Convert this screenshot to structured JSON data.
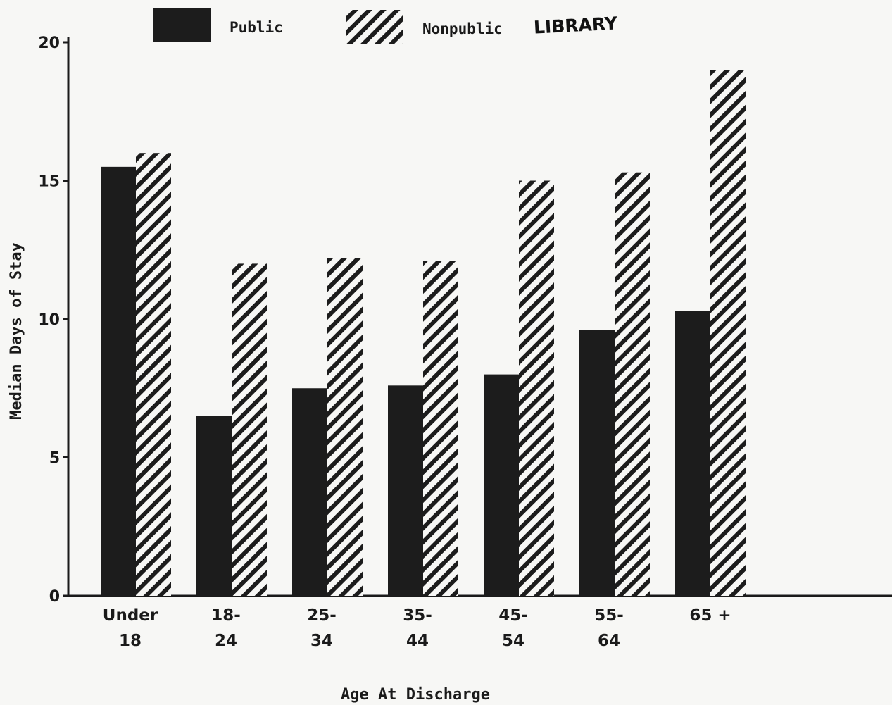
{
  "chart_data": {
    "type": "bar",
    "title": "",
    "xlabel": "Age At Discharge",
    "ylabel": "Median Days of Stay",
    "stamp": "LIBRARY",
    "categories": [
      [
        "Under",
        "18"
      ],
      [
        "18-",
        "24"
      ],
      [
        "25-",
        "34"
      ],
      [
        "35-",
        "44"
      ],
      [
        "45-",
        "54"
      ],
      [
        "55-",
        "64"
      ],
      [
        "65 +"
      ]
    ],
    "series": [
      {
        "name": "Public",
        "pattern": "solid",
        "color": "#1c1c1c",
        "values": [
          15.5,
          6.5,
          7.5,
          7.6,
          8.0,
          9.6,
          10.3
        ]
      },
      {
        "name": "Nonpublic",
        "pattern": "hatched",
        "color": "#1c1c1c",
        "values": [
          16.0,
          12.0,
          12.2,
          12.1,
          15.0,
          15.3,
          19.0
        ]
      }
    ],
    "ylim": [
      0,
      20
    ],
    "yticks": [
      0,
      5,
      10,
      15,
      20
    ],
    "grid": false,
    "legend_position": "top"
  }
}
